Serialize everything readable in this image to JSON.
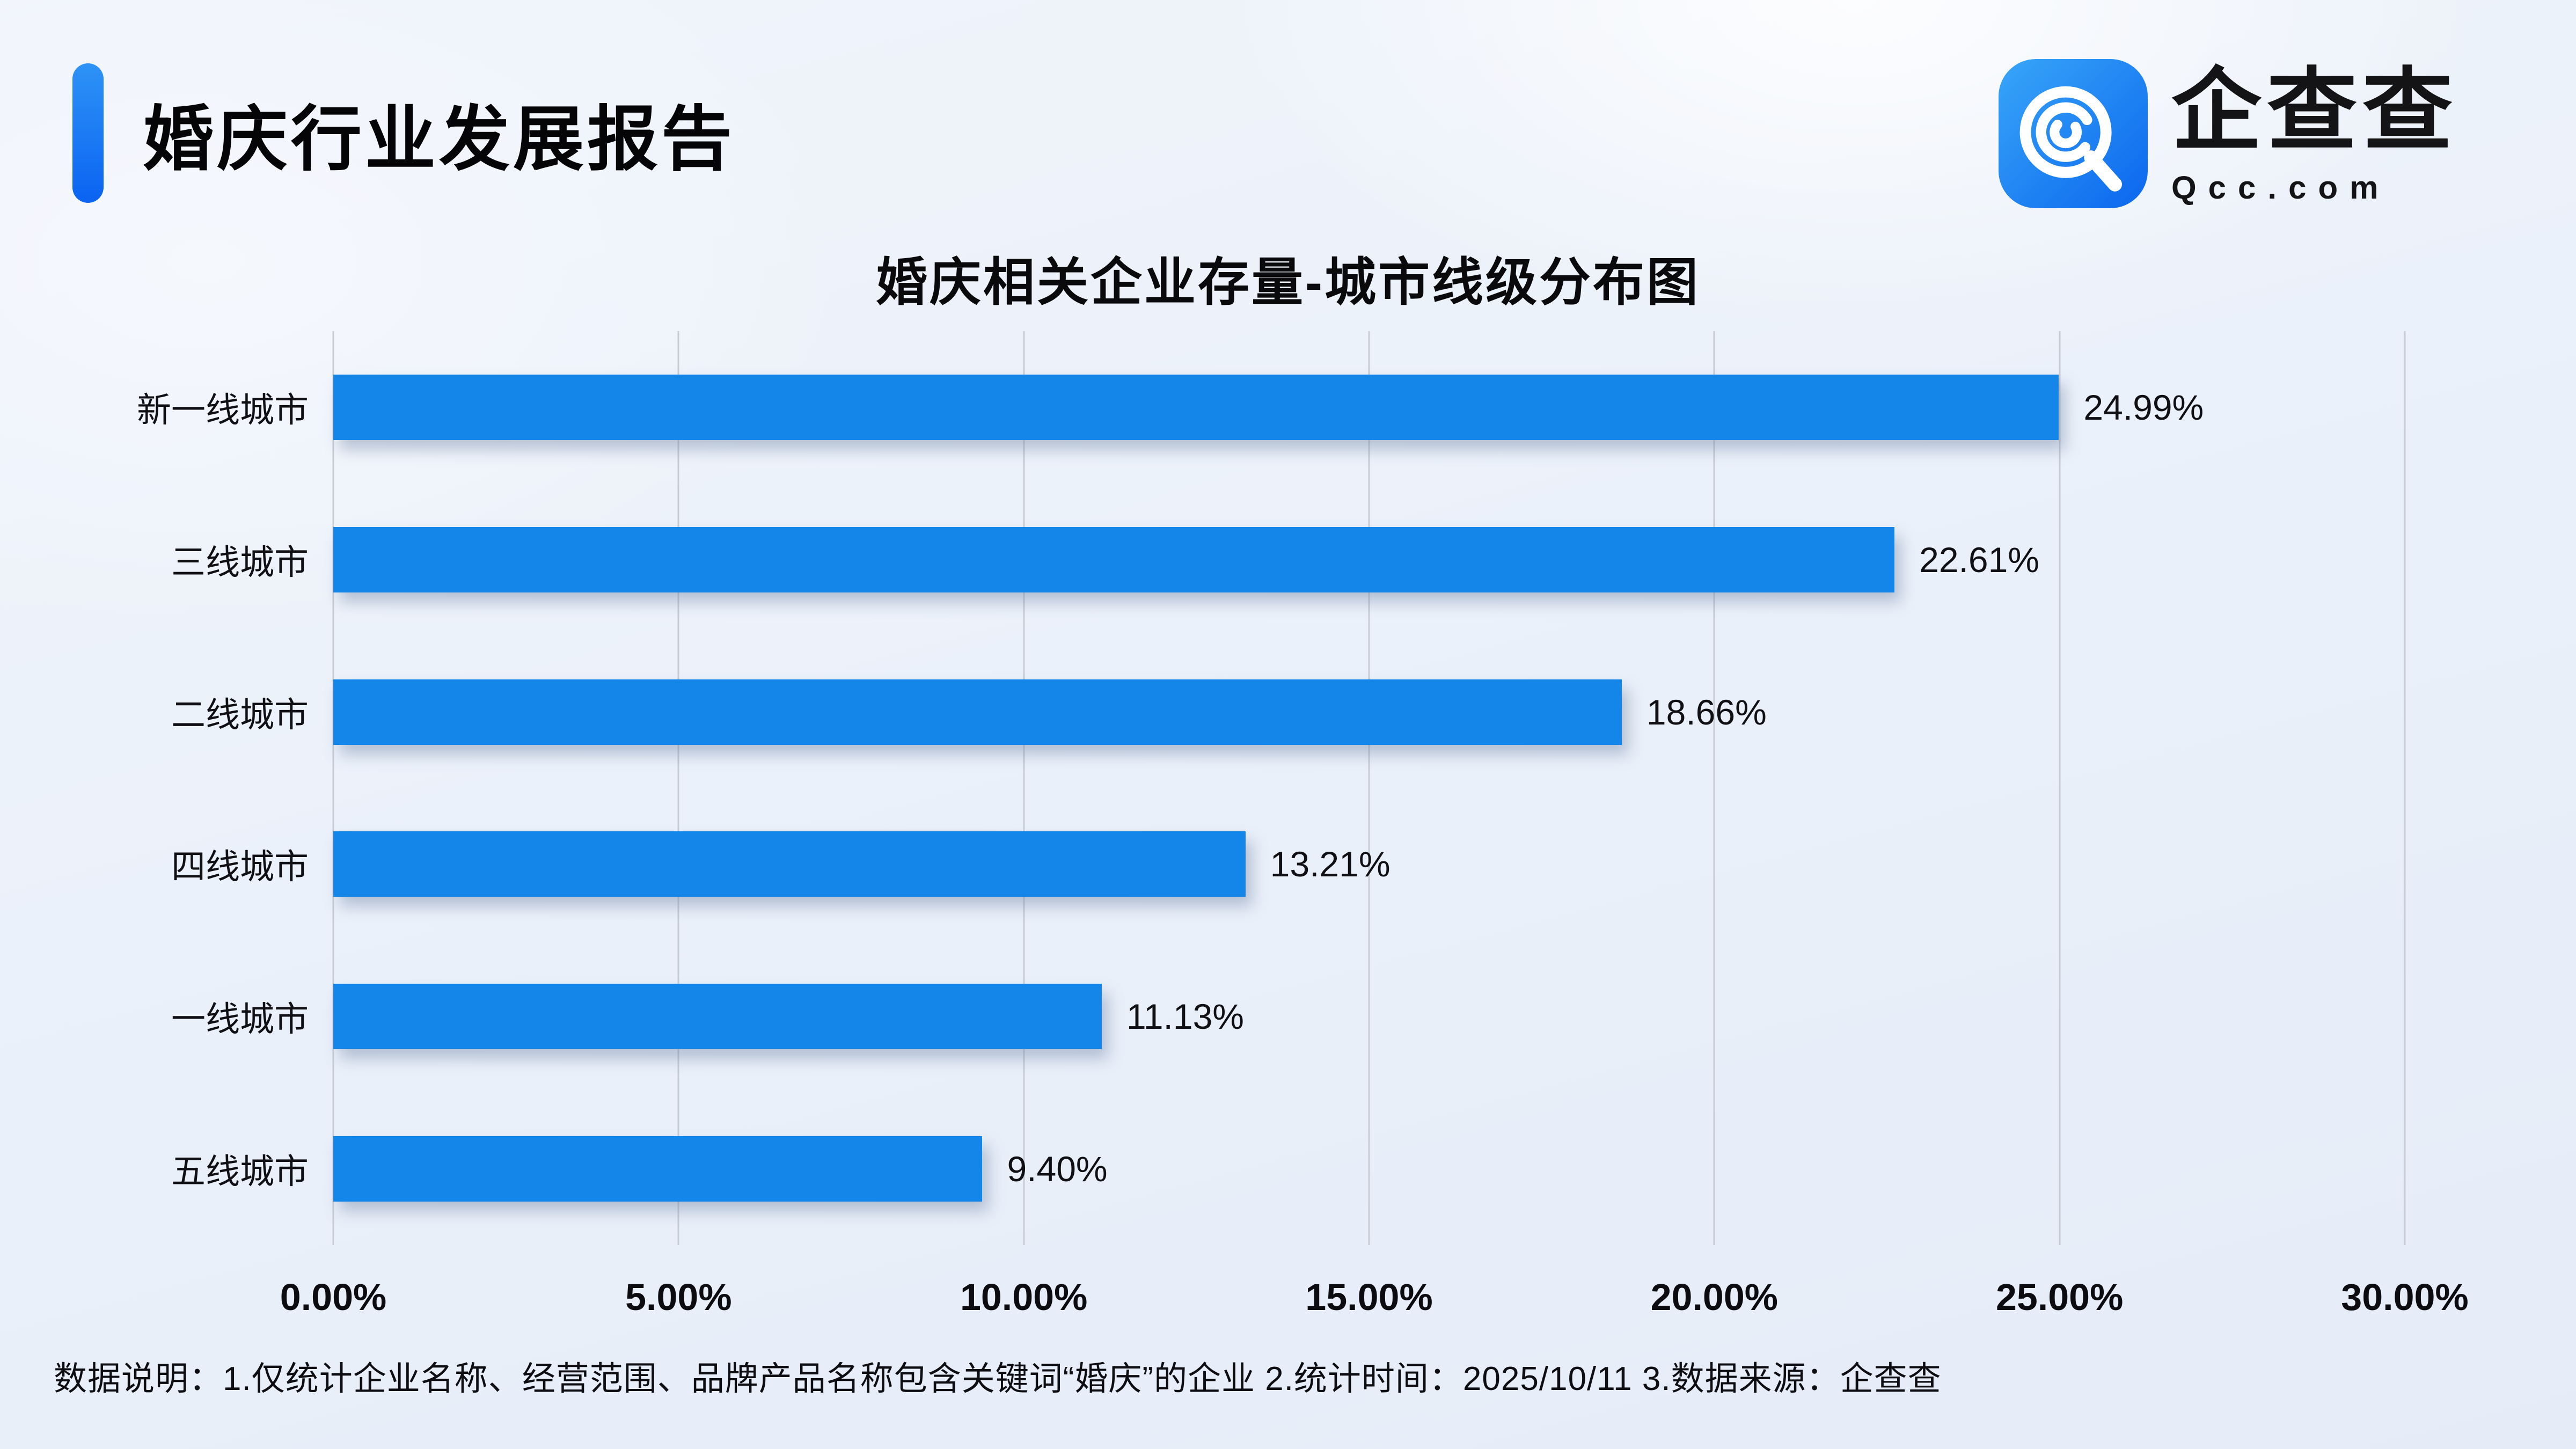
{
  "page": {
    "report_title": "婚庆行业发展报告",
    "brand": {
      "logo_text": "企查查",
      "logo_domain": "Qcc.com",
      "logo_icon": "qcc-spiral-q-icon"
    },
    "footnote": "数据说明：1.仅统计企业名称、经营范围、品牌产品名称包含关键词“婚庆”的企业  2.统计时间：2025/10/11  3.数据来源：企查查"
  },
  "colors": {
    "accent_blue_top": "#2e93f6",
    "accent_blue_bottom": "#0b63f2",
    "bar_blue": "#1586e9",
    "gridline_gray": "#c7ccd5",
    "background": "#ebf1fa",
    "text_dark": "#0c0c0e"
  },
  "chart_data": {
    "type": "bar",
    "orientation": "horizontal",
    "title": "婚庆相关企业存量-城市线级分布图",
    "categories": [
      "新一线城市",
      "三线城市",
      "二线城市",
      "四线城市",
      "一线城市",
      "五线城市"
    ],
    "values": [
      24.99,
      22.61,
      18.66,
      13.21,
      11.13,
      9.4
    ],
    "data_labels": [
      "24.99%",
      "22.61%",
      "18.66%",
      "13.21%",
      "11.13%",
      "9.40%"
    ],
    "x_ticks": [
      "0.00%",
      "5.00%",
      "10.00%",
      "15.00%",
      "20.00%",
      "25.00%",
      "30.00%"
    ],
    "xlim": [
      0,
      30
    ],
    "xlabel": "",
    "ylabel": "",
    "grid": true,
    "legend": false,
    "bar_color": "#1586e9"
  }
}
